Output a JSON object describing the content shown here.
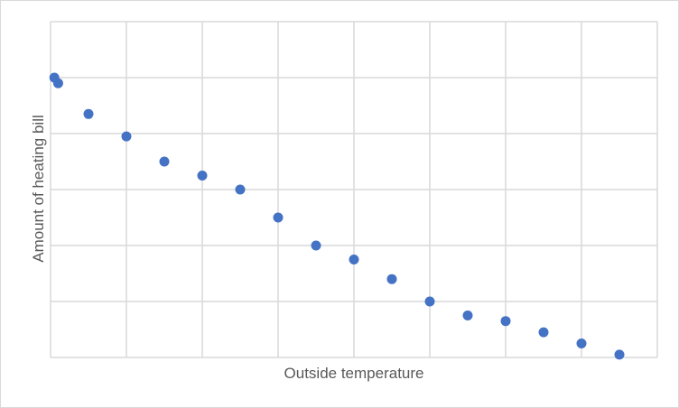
{
  "chart_data": {
    "type": "scatter",
    "title": "",
    "xlabel": "Outside temperature",
    "ylabel": "Amount of heating bill",
    "xlim": [
      0,
      8
    ],
    "ylim": [
      0,
      6
    ],
    "xgrid_count": 8,
    "ygrid_count": 6,
    "grid": true,
    "tick_labels_shown": false,
    "legend": "none",
    "series": [
      {
        "marker_color": "#4472c4",
        "points": [
          {
            "x": 0.05,
            "y": 5.0
          },
          {
            "x": 0.1,
            "y": 4.9
          },
          {
            "x": 0.5,
            "y": 4.35
          },
          {
            "x": 1.0,
            "y": 3.95
          },
          {
            "x": 1.5,
            "y": 3.5
          },
          {
            "x": 2.0,
            "y": 3.25
          },
          {
            "x": 2.5,
            "y": 3.0
          },
          {
            "x": 3.0,
            "y": 2.5
          },
          {
            "x": 3.5,
            "y": 2.0
          },
          {
            "x": 4.0,
            "y": 1.75
          },
          {
            "x": 4.5,
            "y": 1.4
          },
          {
            "x": 5.0,
            "y": 1.0
          },
          {
            "x": 5.5,
            "y": 0.75
          },
          {
            "x": 6.0,
            "y": 0.65
          },
          {
            "x": 6.5,
            "y": 0.45
          },
          {
            "x": 7.0,
            "y": 0.25
          },
          {
            "x": 7.5,
            "y": 0.05
          }
        ]
      }
    ]
  },
  "colors": {
    "gridline": "#d9d9d9",
    "border": "#d9d9d9",
    "axis_title": "#595959"
  }
}
